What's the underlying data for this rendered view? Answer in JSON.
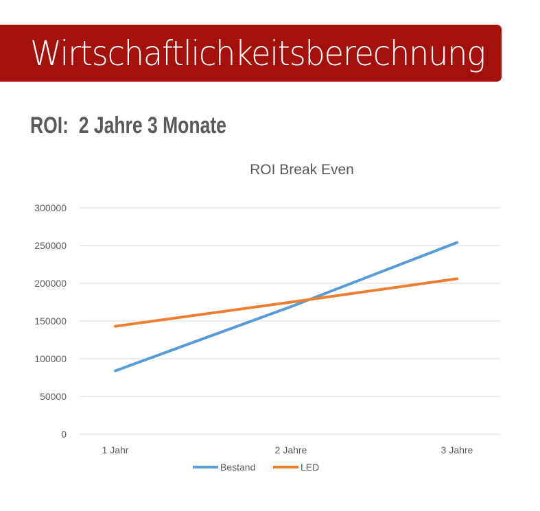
{
  "header": {
    "title": "Wirtschaftlichkeitsberechnung",
    "accent_color": "#a4110b"
  },
  "roi": {
    "text": "ROI:  2 Jahre 3 Monate"
  },
  "chart_data": {
    "type": "line",
    "title": "ROI Break Even",
    "xlabel": "",
    "ylabel": "",
    "categories": [
      "1 Jahr",
      "2 Jahre",
      "3 Jahre"
    ],
    "series": [
      {
        "name": "Bestand",
        "color": "#5b9bd5",
        "values": [
          84000,
          169000,
          254000
        ]
      },
      {
        "name": "LED",
        "color": "#ed7d31",
        "values": [
          143000,
          175000,
          206000
        ]
      }
    ],
    "yticks": [
      "0",
      "50000",
      "100000",
      "150000",
      "200000",
      "250000",
      "300000"
    ],
    "ylim": [
      0,
      300000
    ],
    "grid": true,
    "legend_position": "bottom"
  }
}
